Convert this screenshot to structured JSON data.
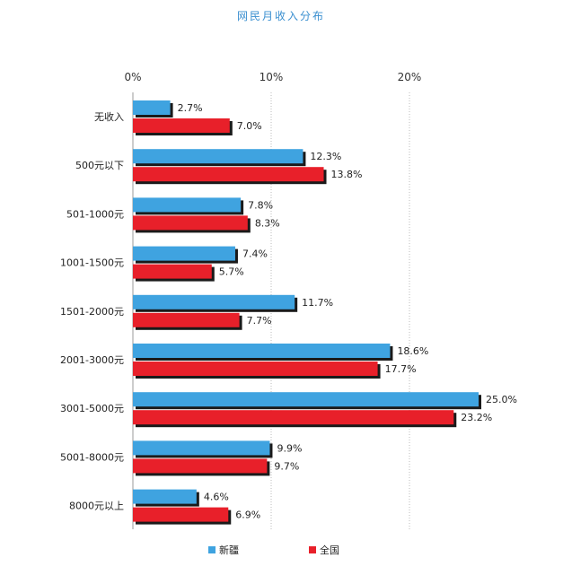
{
  "chart_data": {
    "type": "bar",
    "orientation": "horizontal",
    "title": "网民月收入分布",
    "categories": [
      "无收入",
      "500元以下",
      "501-1000元",
      "1001-1500元",
      "1501-2000元",
      "2001-3000元",
      "3001-5000元",
      "5001-8000元",
      "8000元以上"
    ],
    "series": [
      {
        "name": "新疆",
        "color": "#3fa3e0",
        "values": [
          2.7,
          12.3,
          7.8,
          7.4,
          11.7,
          18.6,
          25.0,
          9.9,
          4.6
        ],
        "labels": [
          "2.7%",
          "12.3%",
          "7.8%",
          "7.4%",
          "11.7%",
          "18.6%",
          "25.0%",
          "9.9%",
          "4.6%"
        ]
      },
      {
        "name": "全国",
        "color": "#e8202a",
        "values": [
          7.0,
          13.8,
          8.3,
          5.7,
          7.7,
          17.7,
          23.2,
          9.7,
          6.9
        ],
        "labels": [
          "7.0%",
          "13.8%",
          "8.3%",
          "5.7%",
          "7.7%",
          "17.7%",
          "23.2%",
          "9.7%",
          "6.9%"
        ]
      }
    ],
    "xlim": [
      0,
      25
    ],
    "xticks": [
      0,
      10,
      20
    ],
    "xtick_labels": [
      "0%",
      "10%",
      "20%"
    ],
    "axis_position": "top",
    "grid": "vertical dotted",
    "legend_position": "bottom-center",
    "title_color": "#3a8fd0"
  }
}
